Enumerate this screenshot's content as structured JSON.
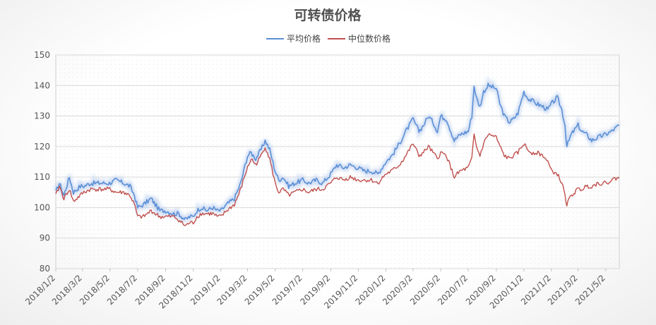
{
  "chart_data": {
    "type": "line",
    "title": "可转债价格",
    "legend_position": "top",
    "grid": true,
    "ylim": [
      80,
      150
    ],
    "yticks": [
      80,
      90,
      100,
      110,
      120,
      130,
      140,
      150
    ],
    "xlim": [
      "2018/1/2",
      "2021/6/1"
    ],
    "xtick_labels": [
      "2018/1/2",
      "2018/3/2",
      "2018/5/2",
      "2018/7/2",
      "2018/9/2",
      "2018/11/2",
      "2019/1/2",
      "2019/3/2",
      "2019/5/2",
      "2019/7/2",
      "2019/9/2",
      "2019/11/2",
      "2020/1/2",
      "2020/3/2",
      "2020/5/2",
      "2020/7/2",
      "2020/9/2",
      "2020/11/2",
      "2021/1/2",
      "2021/3/2",
      "2021/5/2"
    ],
    "colors": {
      "average": "#5b8fd6",
      "median": "#c0504d",
      "average_glow": "#c8d8f2"
    },
    "series": [
      {
        "name": "平均价格",
        "points": [
          [
            "2018/1/2",
            105
          ],
          [
            "2018/1/10",
            108
          ],
          [
            "2018/1/20",
            104
          ],
          [
            "2018/2/1",
            110
          ],
          [
            "2018/2/10",
            105
          ],
          [
            "2018/2/25",
            107
          ],
          [
            "2018/3/5",
            107
          ],
          [
            "2018/3/20",
            108
          ],
          [
            "2018/4/1",
            108
          ],
          [
            "2018/4/15",
            108
          ],
          [
            "2018/5/1",
            108
          ],
          [
            "2018/5/15",
            109
          ],
          [
            "2018/6/1",
            108
          ],
          [
            "2018/6/15",
            107
          ],
          [
            "2018/6/25",
            104
          ],
          [
            "2018/7/2",
            100
          ],
          [
            "2018/7/15",
            101
          ],
          [
            "2018/8/1",
            103
          ],
          [
            "2018/8/10",
            101
          ],
          [
            "2018/8/20",
            99
          ],
          [
            "2018/9/2",
            99
          ],
          [
            "2018/9/20",
            98
          ],
          [
            "2018/10/1",
            98
          ],
          [
            "2018/10/15",
            96
          ],
          [
            "2018/10/25",
            97
          ],
          [
            "2018/11/2",
            97
          ],
          [
            "2018/11/10",
            99
          ],
          [
            "2018/11/20",
            100
          ],
          [
            "2018/12/1",
            99
          ],
          [
            "2018/12/15",
            100
          ],
          [
            "2018/12/25",
            99
          ],
          [
            "2019/1/2",
            99
          ],
          [
            "2019/1/15",
            101
          ],
          [
            "2019/2/1",
            103
          ],
          [
            "2019/2/15",
            108
          ],
          [
            "2019/2/25",
            114
          ],
          [
            "2019/3/2",
            117
          ],
          [
            "2019/3/10",
            118
          ],
          [
            "2019/3/20",
            116
          ],
          [
            "2019/4/1",
            119
          ],
          [
            "2019/4/10",
            122
          ],
          [
            "2019/4/20",
            119
          ],
          [
            "2019/5/2",
            112
          ],
          [
            "2019/5/10",
            109
          ],
          [
            "2019/5/20",
            110
          ],
          [
            "2019/6/1",
            107
          ],
          [
            "2019/6/15",
            108
          ],
          [
            "2019/7/2",
            109
          ],
          [
            "2019/7/15",
            108
          ],
          [
            "2019/8/1",
            109
          ],
          [
            "2019/8/15",
            108
          ],
          [
            "2019/9/2",
            111
          ],
          [
            "2019/9/15",
            114
          ],
          [
            "2019/10/1",
            113
          ],
          [
            "2019/10/15",
            114
          ],
          [
            "2019/11/2",
            113
          ],
          [
            "2019/11/15",
            112
          ],
          [
            "2019/12/1",
            112
          ],
          [
            "2019/12/15",
            111
          ],
          [
            "2020/1/2",
            115
          ],
          [
            "2020/1/15",
            117
          ],
          [
            "2020/2/1",
            121
          ],
          [
            "2020/2/15",
            125
          ],
          [
            "2020/3/2",
            129
          ],
          [
            "2020/3/15",
            125
          ],
          [
            "2020/3/25",
            127
          ],
          [
            "2020/4/5",
            130
          ],
          [
            "2020/4/15",
            128
          ],
          [
            "2020/4/25",
            125
          ],
          [
            "2020/5/2",
            130
          ],
          [
            "2020/5/15",
            129
          ],
          [
            "2020/6/1",
            122
          ],
          [
            "2020/6/15",
            124
          ],
          [
            "2020/7/2",
            125
          ],
          [
            "2020/7/10",
            130
          ],
          [
            "2020/7/15",
            140
          ],
          [
            "2020/7/20",
            136
          ],
          [
            "2020/7/28",
            133
          ],
          [
            "2020/8/5",
            138
          ],
          [
            "2020/8/15",
            140
          ],
          [
            "2020/9/2",
            139
          ],
          [
            "2020/9/10",
            134
          ],
          [
            "2020/9/20",
            130
          ],
          [
            "2020/10/1",
            128
          ],
          [
            "2020/10/10",
            129
          ],
          [
            "2020/10/20",
            131
          ],
          [
            "2020/11/2",
            138
          ],
          [
            "2020/11/10",
            136
          ],
          [
            "2020/11/20",
            135
          ],
          [
            "2020/12/1",
            134
          ],
          [
            "2020/12/15",
            133
          ],
          [
            "2020/12/25",
            132
          ],
          [
            "2021/1/2",
            134
          ],
          [
            "2021/1/15",
            136
          ],
          [
            "2021/1/25",
            132
          ],
          [
            "2021/2/1",
            127
          ],
          [
            "2021/2/5",
            120
          ],
          [
            "2021/2/15",
            124
          ],
          [
            "2021/3/2",
            127
          ],
          [
            "2021/3/10",
            125
          ],
          [
            "2021/3/20",
            124
          ],
          [
            "2021/4/1",
            122
          ],
          [
            "2021/4/15",
            123
          ],
          [
            "2021/5/2",
            124
          ],
          [
            "2021/5/15",
            125
          ],
          [
            "2021/6/1",
            127
          ]
        ]
      },
      {
        "name": "中位数价格",
        "points": [
          [
            "2018/1/2",
            104
          ],
          [
            "2018/1/10",
            107
          ],
          [
            "2018/1/20",
            103
          ],
          [
            "2018/2/1",
            106
          ],
          [
            "2018/2/10",
            102
          ],
          [
            "2018/2/25",
            104
          ],
          [
            "2018/3/5",
            105
          ],
          [
            "2018/3/20",
            106
          ],
          [
            "2018/4/1",
            106
          ],
          [
            "2018/4/15",
            106
          ],
          [
            "2018/5/1",
            106
          ],
          [
            "2018/5/15",
            105
          ],
          [
            "2018/6/1",
            105
          ],
          [
            "2018/6/15",
            104
          ],
          [
            "2018/6/25",
            101
          ],
          [
            "2018/7/2",
            97
          ],
          [
            "2018/7/15",
            97
          ],
          [
            "2018/8/1",
            99
          ],
          [
            "2018/8/10",
            98
          ],
          [
            "2018/8/20",
            97
          ],
          [
            "2018/9/2",
            97
          ],
          [
            "2018/9/20",
            97
          ],
          [
            "2018/10/1",
            96
          ],
          [
            "2018/10/15",
            94
          ],
          [
            "2018/10/25",
            95
          ],
          [
            "2018/11/2",
            95
          ],
          [
            "2018/11/10",
            97
          ],
          [
            "2018/11/20",
            98
          ],
          [
            "2018/12/1",
            98
          ],
          [
            "2018/12/15",
            98
          ],
          [
            "2018/12/25",
            97
          ],
          [
            "2019/1/2",
            97
          ],
          [
            "2019/1/15",
            99
          ],
          [
            "2019/2/1",
            101
          ],
          [
            "2019/2/15",
            106
          ],
          [
            "2019/2/25",
            111
          ],
          [
            "2019/3/2",
            113
          ],
          [
            "2019/3/10",
            116
          ],
          [
            "2019/3/20",
            114
          ],
          [
            "2019/4/1",
            117
          ],
          [
            "2019/4/10",
            120
          ],
          [
            "2019/4/20",
            116
          ],
          [
            "2019/5/2",
            108
          ],
          [
            "2019/5/10",
            105
          ],
          [
            "2019/5/20",
            106
          ],
          [
            "2019/6/1",
            104
          ],
          [
            "2019/6/15",
            105
          ],
          [
            "2019/7/2",
            106
          ],
          [
            "2019/7/15",
            105
          ],
          [
            "2019/8/1",
            106
          ],
          [
            "2019/8/15",
            106
          ],
          [
            "2019/9/2",
            108
          ],
          [
            "2019/9/15",
            110
          ],
          [
            "2019/10/1",
            109
          ],
          [
            "2019/10/15",
            110
          ],
          [
            "2019/11/2",
            109
          ],
          [
            "2019/11/15",
            109
          ],
          [
            "2019/12/1",
            109
          ],
          [
            "2019/12/15",
            108
          ],
          [
            "2020/1/2",
            111
          ],
          [
            "2020/1/15",
            112
          ],
          [
            "2020/2/1",
            114
          ],
          [
            "2020/2/15",
            117
          ],
          [
            "2020/3/2",
            121
          ],
          [
            "2020/3/15",
            117
          ],
          [
            "2020/3/25",
            118
          ],
          [
            "2020/4/5",
            120
          ],
          [
            "2020/4/15",
            118
          ],
          [
            "2020/4/25",
            116
          ],
          [
            "2020/5/2",
            118
          ],
          [
            "2020/5/15",
            117
          ],
          [
            "2020/6/1",
            110
          ],
          [
            "2020/6/15",
            112
          ],
          [
            "2020/7/2",
            113
          ],
          [
            "2020/7/10",
            116
          ],
          [
            "2020/7/15",
            124
          ],
          [
            "2020/7/20",
            120
          ],
          [
            "2020/7/28",
            117
          ],
          [
            "2020/8/5",
            121
          ],
          [
            "2020/8/15",
            124
          ],
          [
            "2020/9/2",
            123
          ],
          [
            "2020/9/10",
            120
          ],
          [
            "2020/9/20",
            117
          ],
          [
            "2020/10/1",
            116
          ],
          [
            "2020/10/10",
            117
          ],
          [
            "2020/10/20",
            118
          ],
          [
            "2020/11/2",
            121
          ],
          [
            "2020/11/10",
            119
          ],
          [
            "2020/11/20",
            118
          ],
          [
            "2020/12/1",
            118
          ],
          [
            "2020/12/15",
            117
          ],
          [
            "2020/12/25",
            115
          ],
          [
            "2021/1/2",
            112
          ],
          [
            "2021/1/15",
            111
          ],
          [
            "2021/1/25",
            108
          ],
          [
            "2021/2/1",
            104
          ],
          [
            "2021/2/5",
            101
          ],
          [
            "2021/2/15",
            104
          ],
          [
            "2021/3/2",
            106
          ],
          [
            "2021/3/10",
            106
          ],
          [
            "2021/3/20",
            107
          ],
          [
            "2021/4/1",
            107
          ],
          [
            "2021/4/15",
            108
          ],
          [
            "2021/5/2",
            108
          ],
          [
            "2021/5/15",
            109
          ],
          [
            "2021/6/1",
            110
          ]
        ]
      }
    ]
  }
}
